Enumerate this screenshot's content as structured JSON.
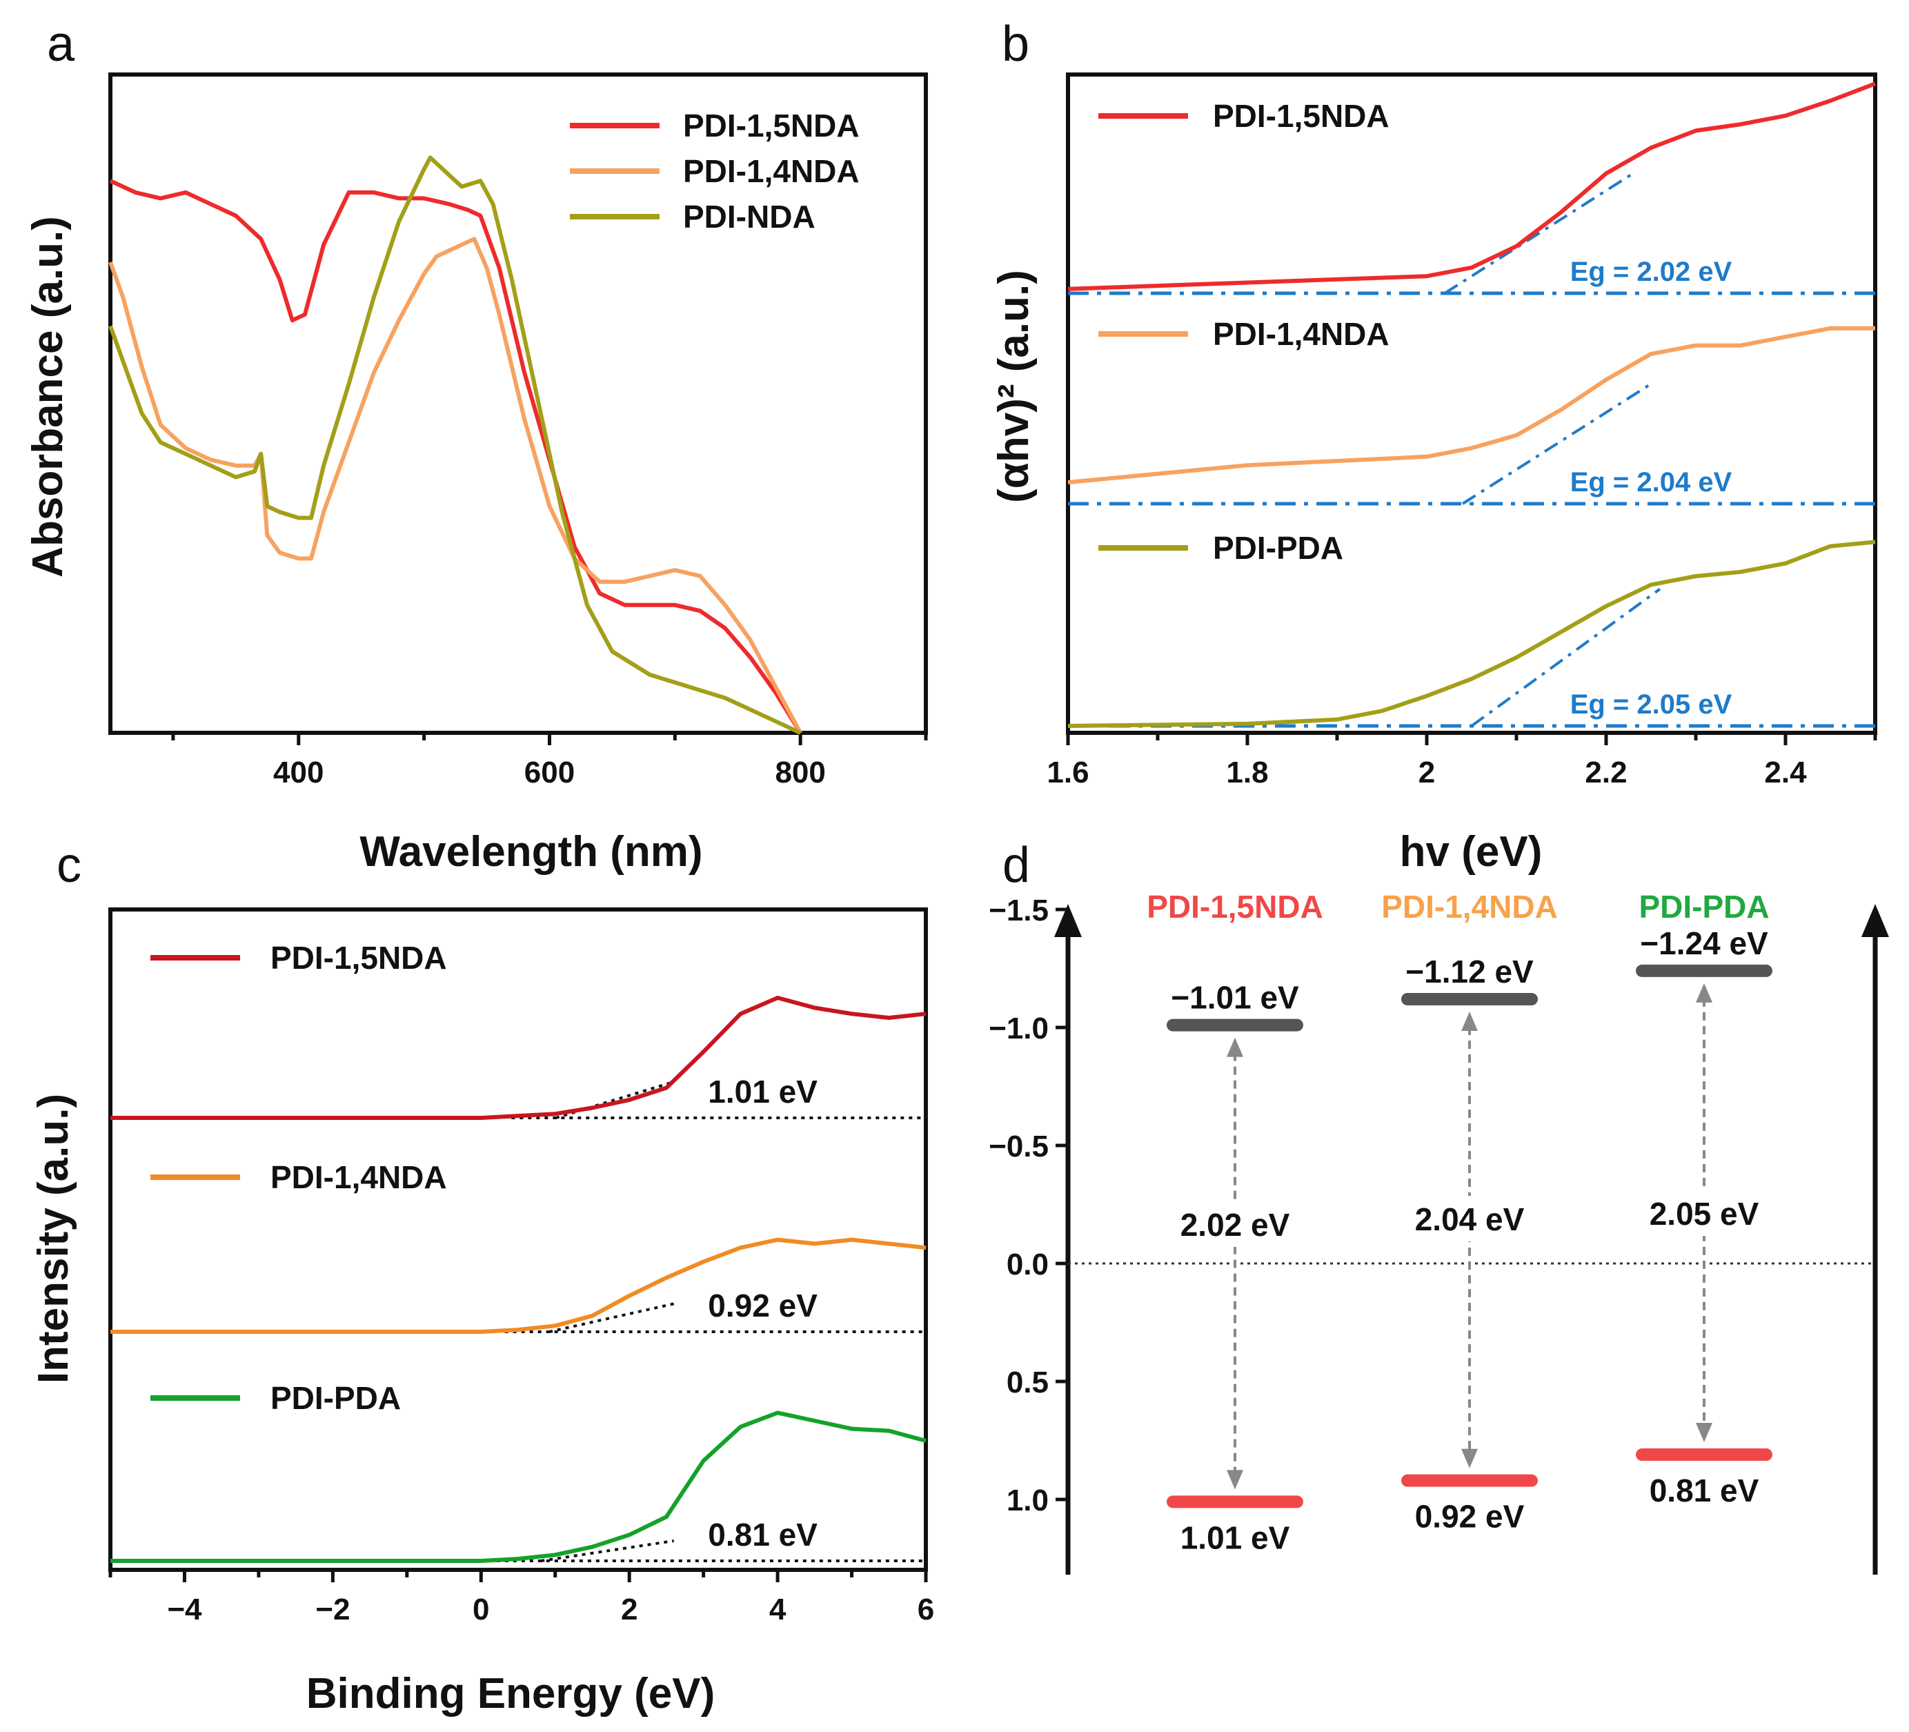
{
  "chart_data": [
    {
      "panel": "a",
      "type": "line",
      "xlabel": "Wavelength (nm)",
      "ylabel": "Absorbance (a.u.)",
      "xlim": [
        250,
        900
      ],
      "ylim": [
        0,
        1
      ],
      "xticks": [
        400,
        600,
        800
      ],
      "legend": "top-right",
      "series": [
        {
          "name": "PDI-1,5NDA",
          "color": "#ee2b2b",
          "x": [
            250,
            270,
            290,
            310,
            330,
            350,
            370,
            385,
            395,
            405,
            420,
            440,
            460,
            480,
            500,
            520,
            535,
            545,
            560,
            580,
            600,
            620,
            640,
            660,
            680,
            700,
            720,
            740,
            760,
            780,
            800
          ],
          "y": [
            0.95,
            0.93,
            0.92,
            0.93,
            0.91,
            0.89,
            0.85,
            0.78,
            0.71,
            0.72,
            0.84,
            0.93,
            0.93,
            0.92,
            0.92,
            0.91,
            0.9,
            0.89,
            0.8,
            0.62,
            0.47,
            0.32,
            0.24,
            0.22,
            0.22,
            0.22,
            0.21,
            0.18,
            0.13,
            0.07,
            0.0
          ]
        },
        {
          "name": "PDI-1,4NDA",
          "color": "#f7a260",
          "x": [
            250,
            260,
            275,
            290,
            310,
            330,
            350,
            365,
            370,
            375,
            385,
            400,
            410,
            420,
            440,
            460,
            480,
            500,
            510,
            520,
            530,
            540,
            550,
            560,
            580,
            600,
            620,
            640,
            660,
            680,
            700,
            720,
            740,
            760,
            780,
            800
          ],
          "y": [
            0.81,
            0.75,
            0.63,
            0.53,
            0.49,
            0.47,
            0.46,
            0.46,
            0.48,
            0.34,
            0.31,
            0.3,
            0.3,
            0.38,
            0.5,
            0.62,
            0.71,
            0.79,
            0.82,
            0.83,
            0.84,
            0.85,
            0.8,
            0.72,
            0.54,
            0.39,
            0.3,
            0.26,
            0.26,
            0.27,
            0.28,
            0.27,
            0.22,
            0.16,
            0.08,
            0.0
          ]
        },
        {
          "name": "PDI-NDA",
          "color": "#a39f19",
          "x": [
            250,
            260,
            275,
            290,
            310,
            330,
            350,
            365,
            370,
            375,
            385,
            400,
            410,
            420,
            440,
            460,
            480,
            500,
            505,
            520,
            530,
            545,
            555,
            570,
            590,
            610,
            630,
            650,
            680,
            710,
            740,
            770,
            800
          ],
          "y": [
            0.7,
            0.64,
            0.55,
            0.5,
            0.48,
            0.46,
            0.44,
            0.45,
            0.48,
            0.39,
            0.38,
            0.37,
            0.37,
            0.46,
            0.6,
            0.75,
            0.88,
            0.97,
            0.99,
            0.96,
            0.94,
            0.95,
            0.91,
            0.78,
            0.58,
            0.38,
            0.22,
            0.14,
            0.1,
            0.08,
            0.06,
            0.03,
            0.0
          ]
        }
      ]
    },
    {
      "panel": "b",
      "type": "line",
      "xlabel": "hv (eV)",
      "ylabel": "(αhv)² (a.u.)",
      "xlim": [
        1.6,
        2.5
      ],
      "ylim": [
        0,
        3
      ],
      "xticks": [
        1.6,
        1.8,
        2.0,
        2.2,
        2.4
      ],
      "series": [
        {
          "name": "PDI-1,5NDA",
          "color": "#ee2b2b",
          "baseline": 2.0,
          "eg": "Eg = 2.02 eV",
          "eg_value": 2.02,
          "x": [
            1.6,
            1.8,
            2.0,
            2.05,
            2.1,
            2.15,
            2.2,
            2.25,
            2.3,
            2.35,
            2.4,
            2.45,
            2.5
          ],
          "y": [
            2.02,
            2.05,
            2.08,
            2.12,
            2.22,
            2.38,
            2.56,
            2.68,
            2.76,
            2.79,
            2.83,
            2.9,
            2.98
          ]
        },
        {
          "name": "PDI-1,4NDA",
          "color": "#f7a260",
          "baseline": 1.0,
          "eg": "Eg = 2.04 eV",
          "eg_value": 2.04,
          "x": [
            1.6,
            1.8,
            2.0,
            2.05,
            2.1,
            2.15,
            2.2,
            2.25,
            2.3,
            2.35,
            2.4,
            2.45,
            2.5
          ],
          "y": [
            1.1,
            1.18,
            1.22,
            1.26,
            1.32,
            1.44,
            1.58,
            1.7,
            1.74,
            1.74,
            1.78,
            1.82,
            1.82
          ]
        },
        {
          "name": "PDI-PDA",
          "color": "#a39f19",
          "baseline": 0.0,
          "eg": "Eg = 2.05 eV",
          "eg_value": 2.05,
          "x": [
            1.6,
            1.8,
            1.9,
            1.95,
            2.0,
            2.05,
            2.1,
            2.15,
            2.2,
            2.25,
            2.3,
            2.35,
            2.4,
            2.45,
            2.5
          ],
          "y": [
            0.0,
            0.01,
            0.03,
            0.07,
            0.14,
            0.22,
            0.32,
            0.44,
            0.56,
            0.66,
            0.7,
            0.72,
            0.76,
            0.84,
            0.86
          ]
        }
      ]
    },
    {
      "panel": "c",
      "type": "line",
      "xlabel": "Binding Energy (eV)",
      "ylabel": "Intensity (a.u.)",
      "xlim": [
        -5,
        6
      ],
      "ylim": [
        0,
        3
      ],
      "xticks": [
        -4,
        -2,
        0,
        2,
        4,
        6
      ],
      "xticklabels": [
        "−4",
        "−2",
        "0",
        "2",
        "4",
        "6"
      ],
      "series": [
        {
          "name": "PDI-1,5NDA",
          "color": "#c8161e",
          "baseline": 2.0,
          "onset": "1.01 eV",
          "onset_value": 1.01,
          "x": [
            -5,
            -2,
            0,
            0.5,
            1,
            1.5,
            2,
            2.5,
            3,
            3.5,
            4,
            4.5,
            5,
            5.5,
            6
          ],
          "y": [
            2.0,
            2.0,
            2.0,
            2.01,
            2.02,
            2.05,
            2.09,
            2.15,
            2.33,
            2.52,
            2.6,
            2.55,
            2.52,
            2.5,
            2.52
          ]
        },
        {
          "name": "PDI-1,4NDA",
          "color": "#f28a25",
          "baseline": 1.0,
          "onset": "0.92 eV",
          "onset_value": 0.92,
          "x": [
            -5,
            -2,
            0,
            0.5,
            1,
            1.5,
            2,
            2.5,
            3,
            3.5,
            4,
            4.5,
            5,
            5.5,
            6
          ],
          "y": [
            1.0,
            1.0,
            1.0,
            1.01,
            1.03,
            1.08,
            1.18,
            1.27,
            1.35,
            1.42,
            1.46,
            1.44,
            1.46,
            1.44,
            1.42
          ]
        },
        {
          "name": "PDI-PDA",
          "color": "#14a22a",
          "baseline": 0.0,
          "onset": "0.81 eV",
          "onset_value": 0.81,
          "x": [
            -5,
            -2,
            0,
            0.5,
            1,
            1.5,
            2,
            2.5,
            3,
            3.5,
            4,
            4.5,
            5,
            5.5,
            6
          ],
          "y": [
            0.0,
            0.0,
            0.0,
            0.01,
            0.03,
            0.07,
            0.13,
            0.22,
            0.5,
            0.67,
            0.74,
            0.7,
            0.66,
            0.65,
            0.6
          ]
        }
      ]
    },
    {
      "panel": "d",
      "type": "band-diagram",
      "ylim": [
        1.3,
        -1.5
      ],
      "yticks": [
        -1.5,
        -1.0,
        -0.5,
        0.0,
        0.5,
        1.0
      ],
      "yticklabels": [
        "−1.5",
        "−1.0",
        "−0.5",
        "0.0",
        "0.5",
        "1.0"
      ],
      "materials": [
        {
          "name": "PDI-1,5NDA",
          "color": "#f04848",
          "cb": -1.01,
          "vb": 1.01,
          "cb_label": "−1.01 eV",
          "vb_label": "1.01 eV",
          "gap_label": "2.02 eV"
        },
        {
          "name": "PDI-1,4NDA",
          "color": "#f7a24a",
          "cb": -1.12,
          "vb": 0.92,
          "cb_label": "−1.12 eV",
          "vb_label": "0.92 eV",
          "gap_label": "2.04 eV"
        },
        {
          "name": "PDI-PDA",
          "color": "#21a842",
          "cb": -1.24,
          "vb": 0.81,
          "cb_label": "−1.24 eV",
          "vb_label": "0.81 eV",
          "gap_label": "2.05 eV"
        }
      ]
    }
  ],
  "panels": {
    "a": "a",
    "b": "b",
    "c": "c",
    "d": "d"
  },
  "colors": {
    "cb_level": "#555555",
    "vb_level": "#f04848",
    "fit_line": "#1f7bc8"
  }
}
